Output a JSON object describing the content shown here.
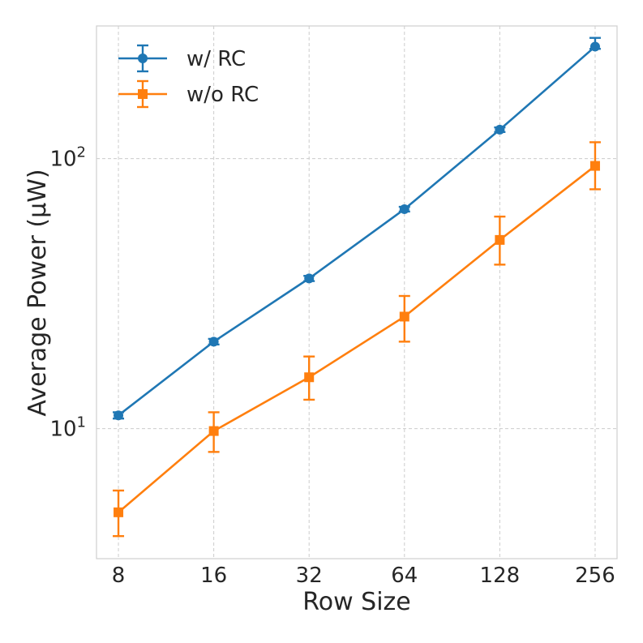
{
  "chart_data": {
    "type": "line",
    "title": "",
    "xlabel": "Row Size",
    "ylabel": "Average Power (μW)",
    "x": [
      8,
      16,
      32,
      64,
      128,
      256
    ],
    "x_tick_labels": [
      "8",
      "16",
      "32",
      "64",
      "128",
      "256"
    ],
    "y_scale": "log",
    "ylim": [
      3.3,
      310
    ],
    "y_ticks": [
      {
        "value": 10,
        "base": "10",
        "exp": "1"
      },
      {
        "value": 100,
        "base": "10",
        "exp": "2"
      }
    ],
    "grid": true,
    "legend_position": "top-left",
    "series": [
      {
        "name": "w/ RC",
        "color": "#1f77b4",
        "marker": "circle",
        "values": [
          11.2,
          21.0,
          36.0,
          65.0,
          128.0,
          260.0
        ],
        "error_low": [
          0.3,
          0.5,
          0.8,
          1.3,
          2.5,
          5.0
        ],
        "error_high": [
          0.3,
          0.5,
          0.8,
          1.3,
          2.5,
          20.0
        ]
      },
      {
        "name": "w/o RC",
        "color": "#ff7f0e",
        "marker": "square",
        "values": [
          4.9,
          9.8,
          15.5,
          26.0,
          50.0,
          94.0
        ],
        "error_low": [
          0.9,
          1.6,
          2.7,
          5.0,
          9.5,
          17.0
        ],
        "error_high": [
          1.0,
          1.7,
          3.0,
          5.0,
          11.0,
          21.0
        ]
      }
    ]
  }
}
